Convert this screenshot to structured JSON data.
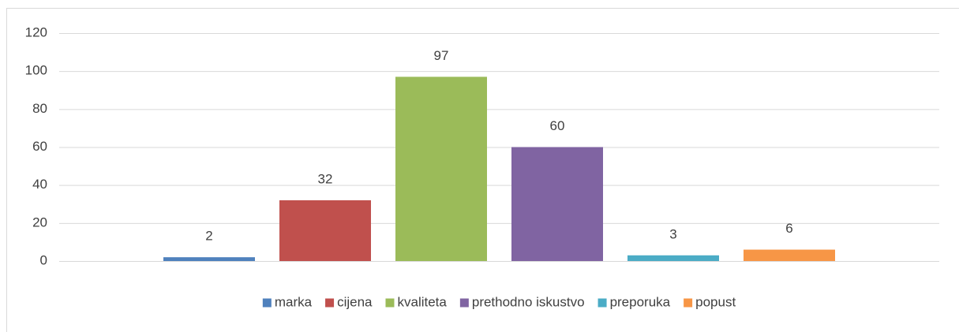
{
  "chart_data": {
    "type": "bar",
    "categories": [
      null
    ],
    "series": [
      {
        "name": "marka",
        "color": "#4f81bd",
        "values": [
          2
        ]
      },
      {
        "name": "cijena",
        "color": "#c0504d",
        "values": [
          32
        ]
      },
      {
        "name": "kvaliteta",
        "color": "#9bbb59",
        "values": [
          97
        ]
      },
      {
        "name": "prethodno iskustvo",
        "color": "#8064a2",
        "values": [
          60
        ]
      },
      {
        "name": "preporuka",
        "color": "#4bacc6",
        "values": [
          3
        ]
      },
      {
        "name": "popust",
        "color": "#f79646",
        "values": [
          6
        ]
      }
    ],
    "ylim": [
      0,
      120
    ],
    "yticks": [
      0,
      20,
      40,
      60,
      80,
      100,
      120
    ],
    "grid": true,
    "legend": "bottom"
  }
}
